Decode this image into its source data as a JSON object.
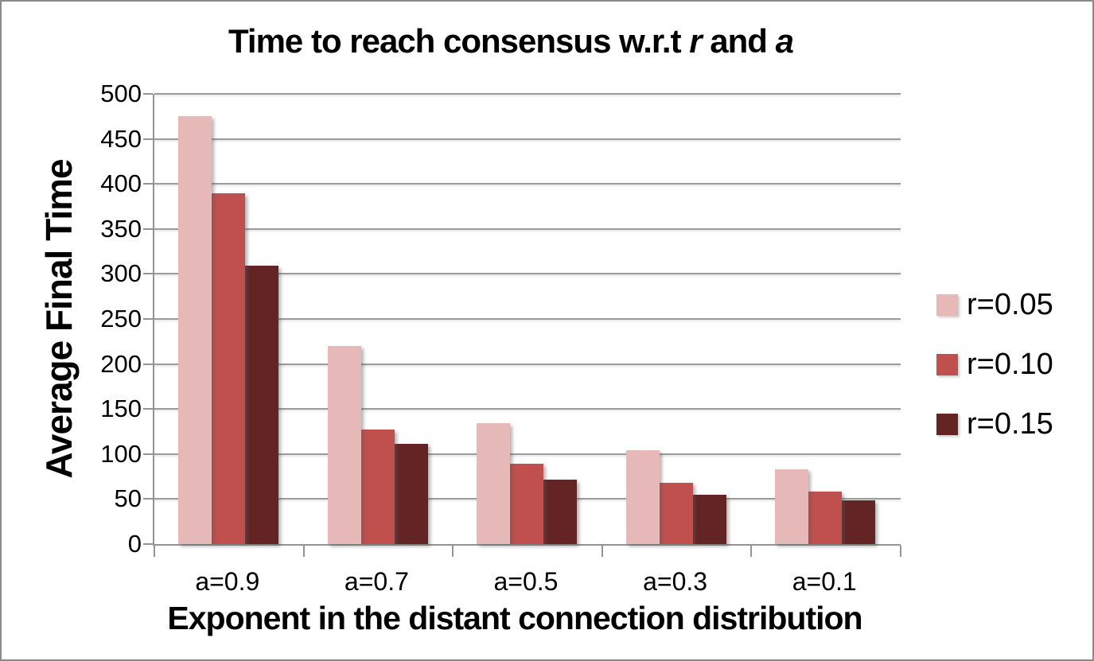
{
  "chart_data": {
    "type": "bar",
    "title": "Time to reach consensus w.r.t r and a",
    "title_parts": {
      "prefix": "Time to reach consensus w.r.t ",
      "italic1": "r",
      "mid": " and ",
      "italic2": "a"
    },
    "xlabel": "Exponent in the distant connection distribution",
    "ylabel": "Average Final Time",
    "categories": [
      "a=0.9",
      "a=0.7",
      "a=0.5",
      "a=0.3",
      "a=0.1"
    ],
    "series": [
      {
        "name": "r=0.05",
        "color": "#E6B9B8",
        "values": [
          475,
          220,
          134,
          104,
          83
        ]
      },
      {
        "name": "r=0.10",
        "color": "#C0504D",
        "values": [
          390,
          127,
          89,
          68,
          58
        ]
      },
      {
        "name": "r=0.15",
        "color": "#632423",
        "values": [
          309,
          111,
          72,
          55,
          49
        ]
      }
    ],
    "ylim": [
      0,
      500
    ],
    "ytick_step": 50,
    "yticks": [
      0,
      50,
      100,
      150,
      200,
      250,
      300,
      350,
      400,
      450,
      500
    ],
    "grid": true,
    "legend_position": "right",
    "colors": {
      "gridline": "#9B9B9B",
      "axis": "#949494",
      "text": "#000000",
      "background": "#FFFFFF",
      "frame_border": "#8A8A8A"
    }
  }
}
